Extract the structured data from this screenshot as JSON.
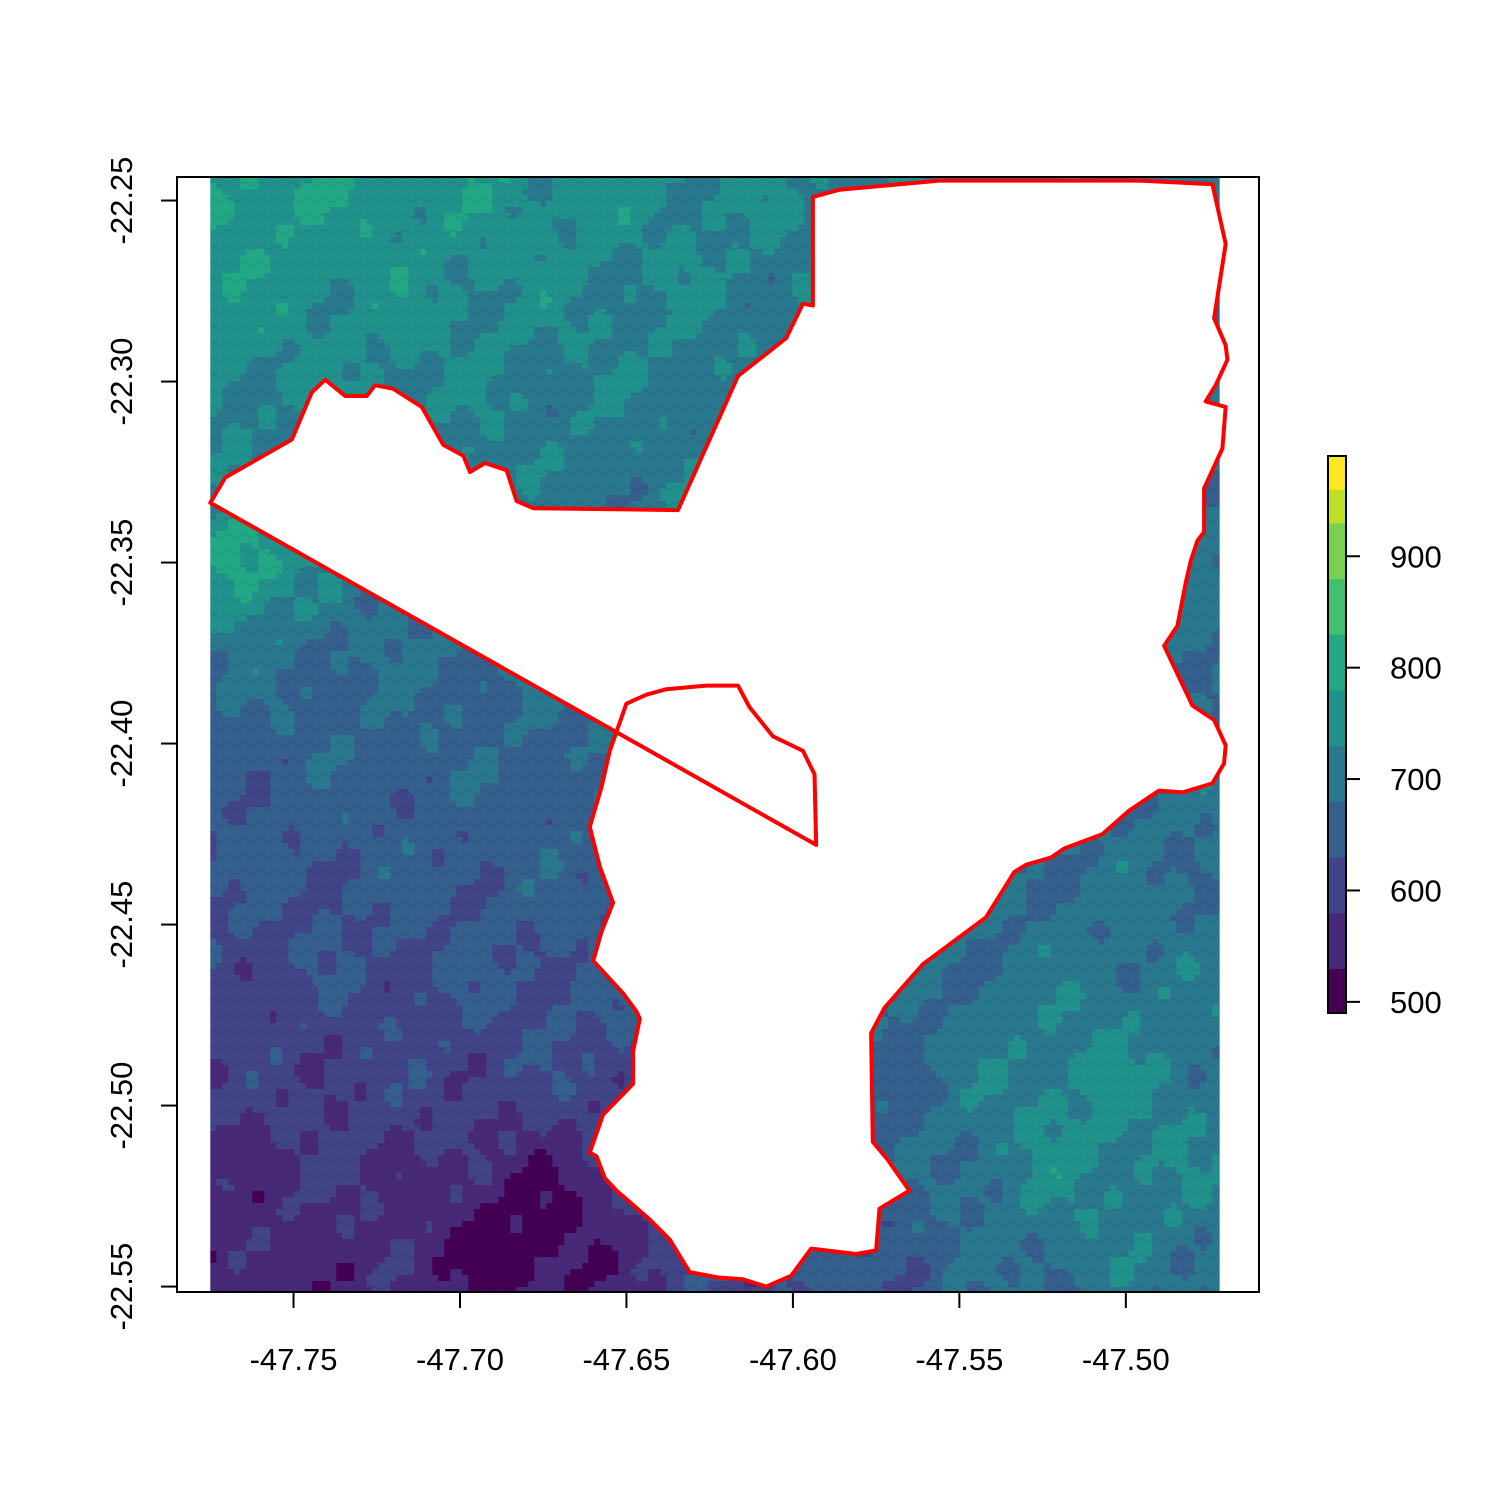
{
  "map": {
    "x_axis": {
      "range": [
        -47.785,
        -47.46
      ],
      "ticks": [
        {
          "value": -47.75,
          "label": "-47.75"
        },
        {
          "value": -47.7,
          "label": "-47.70"
        },
        {
          "value": -47.65,
          "label": "-47.65"
        },
        {
          "value": -47.6,
          "label": "-47.60"
        },
        {
          "value": -47.55,
          "label": "-47.55"
        },
        {
          "value": -47.5,
          "label": "-47.50"
        }
      ]
    },
    "y_axis": {
      "range": [
        -22.5515,
        -22.2435
      ],
      "ticks": [
        {
          "value": -22.25,
          "label": "-22.25"
        },
        {
          "value": -22.3,
          "label": "-22.30"
        },
        {
          "value": -22.35,
          "label": "-22.35"
        },
        {
          "value": -22.4,
          "label": "-22.40"
        },
        {
          "value": -22.45,
          "label": "-22.45"
        },
        {
          "value": -22.5,
          "label": "-22.50"
        },
        {
          "value": -22.55,
          "label": "-22.55"
        }
      ]
    },
    "raster_extent": {
      "lon": [
        -47.775,
        -47.472
      ],
      "lat": [
        -22.5515,
        -22.2435
      ]
    },
    "elevation_bins": [
      {
        "from": 490,
        "to": 530,
        "color": "#440154"
      },
      {
        "from": 530,
        "to": 580,
        "color": "#482878"
      },
      {
        "from": 580,
        "to": 630,
        "color": "#414487"
      },
      {
        "from": 630,
        "to": 680,
        "color": "#355f8d"
      },
      {
        "from": 680,
        "to": 730,
        "color": "#2a788e"
      },
      {
        "from": 730,
        "to": 780,
        "color": "#21918c"
      },
      {
        "from": 780,
        "to": 830,
        "color": "#22a884"
      },
      {
        "from": 830,
        "to": 880,
        "color": "#44bf70"
      },
      {
        "from": 880,
        "to": 930,
        "color": "#7ad151"
      },
      {
        "from": 930,
        "to": 960,
        "color": "#bddf26"
      },
      {
        "from": 960,
        "to": 990,
        "color": "#fde725"
      }
    ],
    "boundary_color": "#ff0000",
    "boundary": [
      [
        -47.775,
        -22.3335
      ],
      [
        -47.7705,
        -22.3265
      ],
      [
        -47.7505,
        -22.316
      ],
      [
        -47.7445,
        -22.303
      ],
      [
        -47.7405,
        -22.2995
      ],
      [
        -47.7345,
        -22.304
      ],
      [
        -47.728,
        -22.304
      ],
      [
        -47.7255,
        -22.301
      ],
      [
        -47.72,
        -22.302
      ],
      [
        -47.7115,
        -22.307
      ],
      [
        -47.705,
        -22.3175
      ],
      [
        -47.699,
        -22.3205
      ],
      [
        -47.697,
        -22.325
      ],
      [
        -47.6925,
        -22.3225
      ],
      [
        -47.686,
        -22.3245
      ],
      [
        -47.683,
        -22.333
      ],
      [
        -47.678,
        -22.335
      ],
      [
        -47.6345,
        -22.3355
      ],
      [
        -47.6165,
        -22.2985
      ],
      [
        -47.602,
        -22.288
      ],
      [
        -47.597,
        -22.2785
      ],
      [
        -47.594,
        -22.279
      ],
      [
        -47.594,
        -22.249
      ],
      [
        -47.586,
        -22.247
      ],
      [
        -47.556,
        -22.2445
      ],
      [
        -47.4965,
        -22.2445
      ],
      [
        -47.496,
        -22.2445
      ],
      [
        -47.474,
        -22.2455
      ],
      [
        -47.47,
        -22.262
      ],
      [
        -47.4735,
        -22.2825
      ],
      [
        -47.47,
        -22.29
      ],
      [
        -47.4695,
        -22.294
      ],
      [
        -47.473,
        -22.301
      ],
      [
        -47.476,
        -22.3055
      ],
      [
        -47.47,
        -22.307
      ],
      [
        -47.471,
        -22.3185
      ],
      [
        -47.4765,
        -22.3295
      ],
      [
        -47.4765,
        -22.3415
      ],
      [
        -47.4785,
        -22.344
      ],
      [
        -47.4805,
        -22.3495
      ],
      [
        -47.482,
        -22.3555
      ],
      [
        -47.4845,
        -22.3675
      ],
      [
        -47.4885,
        -22.373
      ],
      [
        -47.48,
        -22.3895
      ],
      [
        -47.4735,
        -22.3935
      ],
      [
        -47.47,
        -22.4005
      ],
      [
        -47.4705,
        -22.4055
      ],
      [
        -47.474,
        -22.411
      ],
      [
        -47.483,
        -22.4135
      ],
      [
        -47.49,
        -22.413
      ],
      [
        -47.499,
        -22.4185
      ],
      [
        -47.507,
        -22.425
      ],
      [
        -47.5185,
        -22.429
      ],
      [
        -47.5225,
        -22.4315
      ],
      [
        -47.53,
        -22.4335
      ],
      [
        -47.5335,
        -22.4355
      ],
      [
        -47.542,
        -22.448
      ],
      [
        -47.561,
        -22.461
      ],
      [
        -47.5725,
        -22.473
      ],
      [
        -47.5765,
        -22.48
      ],
      [
        -47.576,
        -22.51
      ],
      [
        -47.5715,
        -22.515
      ],
      [
        -47.565,
        -22.5235
      ],
      [
        -47.574,
        -22.5285
      ],
      [
        -47.575,
        -22.54
      ],
      [
        -47.581,
        -22.541
      ],
      [
        -47.5945,
        -22.5395
      ],
      [
        -47.6005,
        -22.547
      ],
      [
        -47.608,
        -22.55
      ],
      [
        -47.615,
        -22.548
      ],
      [
        -47.6225,
        -22.5475
      ],
      [
        -47.631,
        -22.546
      ],
      [
        -47.637,
        -22.537
      ],
      [
        -47.643,
        -22.5315
      ],
      [
        -47.653,
        -22.5235
      ],
      [
        -47.6565,
        -22.52
      ],
      [
        -47.659,
        -22.514
      ],
      [
        -47.661,
        -22.513
      ],
      [
        -47.657,
        -22.5025
      ],
      [
        -47.648,
        -22.494
      ],
      [
        -47.648,
        -22.485
      ],
      [
        -47.646,
        -22.476
      ],
      [
        -47.647,
        -22.474
      ],
      [
        -47.651,
        -22.469
      ],
      [
        -47.66,
        -22.46
      ],
      [
        -47.6575,
        -22.452
      ],
      [
        -47.654,
        -22.444
      ],
      [
        -47.658,
        -22.434
      ],
      [
        -47.661,
        -22.423
      ],
      [
        -47.6575,
        -22.412
      ],
      [
        -47.655,
        -22.402
      ],
      [
        -47.65,
        -22.389
      ],
      [
        -47.644,
        -22.3865
      ],
      [
        -47.638,
        -22.385
      ],
      [
        -47.626,
        -22.384
      ],
      [
        -47.6165,
        -22.384
      ],
      [
        -47.613,
        -22.39
      ],
      [
        -47.606,
        -22.398
      ],
      [
        -47.597,
        -22.402
      ],
      [
        -47.5935,
        -22.4085
      ],
      [
        -47.593,
        -22.428
      ]
    ]
  },
  "legend": {
    "ticks": [
      {
        "value": 500,
        "label": "500"
      },
      {
        "value": 600,
        "label": "600"
      },
      {
        "value": 700,
        "label": "700"
      },
      {
        "value": 800,
        "label": "800"
      },
      {
        "value": 900,
        "label": "900"
      }
    ],
    "range": [
      490,
      990
    ]
  }
}
